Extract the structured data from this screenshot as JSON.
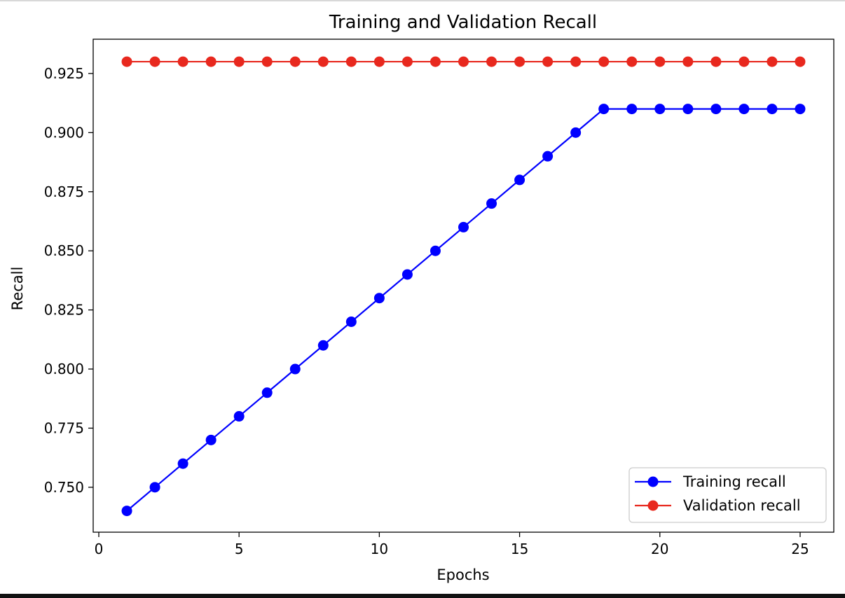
{
  "chart_data": {
    "type": "line",
    "title": "Training and Validation Recall",
    "xlabel": "Epochs",
    "ylabel": "Recall",
    "xlim": [
      -0.2,
      26.2
    ],
    "ylim": [
      0.731,
      0.9395
    ],
    "xticks": [
      0,
      5,
      10,
      15,
      20,
      25
    ],
    "xtick_labels": [
      "0",
      "5",
      "10",
      "15",
      "20",
      "25"
    ],
    "yticks": [
      0.75,
      0.775,
      0.8,
      0.825,
      0.85,
      0.875,
      0.9,
      0.925
    ],
    "ytick_labels": [
      "0.750",
      "0.775",
      "0.800",
      "0.825",
      "0.850",
      "0.875",
      "0.900",
      "0.925"
    ],
    "grid": false,
    "legend_position": "lower-right",
    "x": [
      1,
      2,
      3,
      4,
      5,
      6,
      7,
      8,
      9,
      10,
      11,
      12,
      13,
      14,
      15,
      16,
      17,
      18,
      19,
      20,
      21,
      22,
      23,
      24,
      25
    ],
    "series": [
      {
        "name": "Training recall",
        "color": "#0000ff",
        "marker": "circle",
        "values": [
          0.74,
          0.75,
          0.76,
          0.77,
          0.78,
          0.79,
          0.8,
          0.81,
          0.82,
          0.83,
          0.84,
          0.85,
          0.86,
          0.87,
          0.88,
          0.89,
          0.9,
          0.91,
          0.91,
          0.91,
          0.91,
          0.91,
          0.91,
          0.91,
          0.91
        ]
      },
      {
        "name": "Validation recall",
        "color": "#e8281e",
        "marker": "circle",
        "values": [
          0.93,
          0.93,
          0.93,
          0.93,
          0.93,
          0.93,
          0.93,
          0.93,
          0.93,
          0.93,
          0.93,
          0.93,
          0.93,
          0.93,
          0.93,
          0.93,
          0.93,
          0.93,
          0.93,
          0.93,
          0.93,
          0.93,
          0.93,
          0.93,
          0.93
        ]
      }
    ]
  }
}
